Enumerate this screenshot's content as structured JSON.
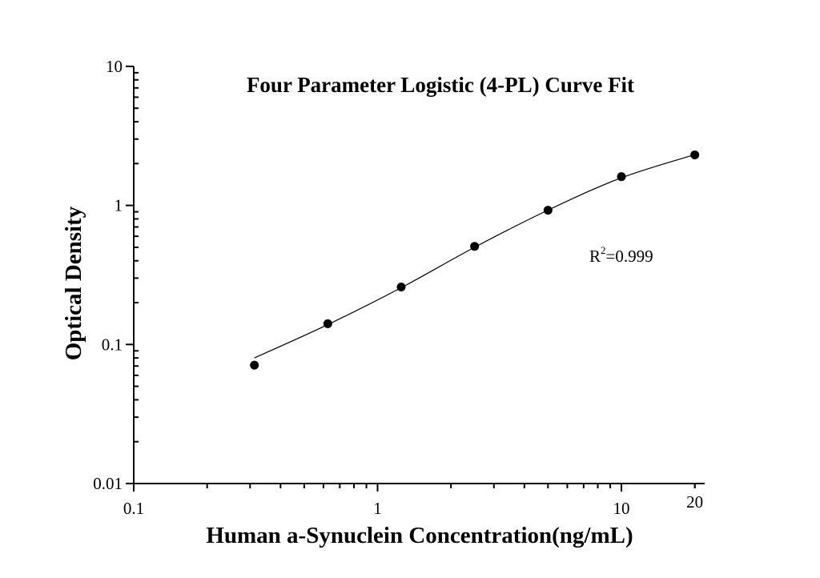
{
  "chart_data": {
    "type": "scatter",
    "title": "Four Parameter Logistic (4-PL) Curve Fit",
    "xlabel": "Human a-Synuclein Concentration(ng/mL)",
    "ylabel": "Optical Density",
    "xscale": "log",
    "yscale": "log",
    "xlim": [
      0.1,
      22
    ],
    "ylim": [
      0.01,
      10
    ],
    "xticks": [
      0.1,
      1,
      10,
      20
    ],
    "xtick_labels": [
      "0.1",
      "1",
      "10",
      "20"
    ],
    "yticks": [
      0.01,
      0.1,
      1,
      10
    ],
    "ytick_labels": [
      "0.01",
      "0.1",
      "1",
      "10"
    ],
    "grid": false,
    "legend": null,
    "series": [
      {
        "name": "Standards",
        "type": "scatter",
        "x": [
          0.3125,
          0.625,
          1.25,
          2.5,
          5,
          10,
          20
        ],
        "y": [
          0.071,
          0.141,
          0.259,
          0.508,
          0.923,
          1.61,
          2.31
        ]
      },
      {
        "name": "4-PL fit",
        "type": "line",
        "x": [
          0.3125,
          0.625,
          1.25,
          2.5,
          5,
          10,
          20
        ],
        "y": [
          0.08,
          0.139,
          0.256,
          0.5,
          0.925,
          1.58,
          2.32
        ]
      }
    ],
    "annotations": [
      {
        "text_base": "R",
        "text_sup": "2",
        "text_rest": "=0.999",
        "x": 10,
        "y": 0.37
      }
    ]
  }
}
